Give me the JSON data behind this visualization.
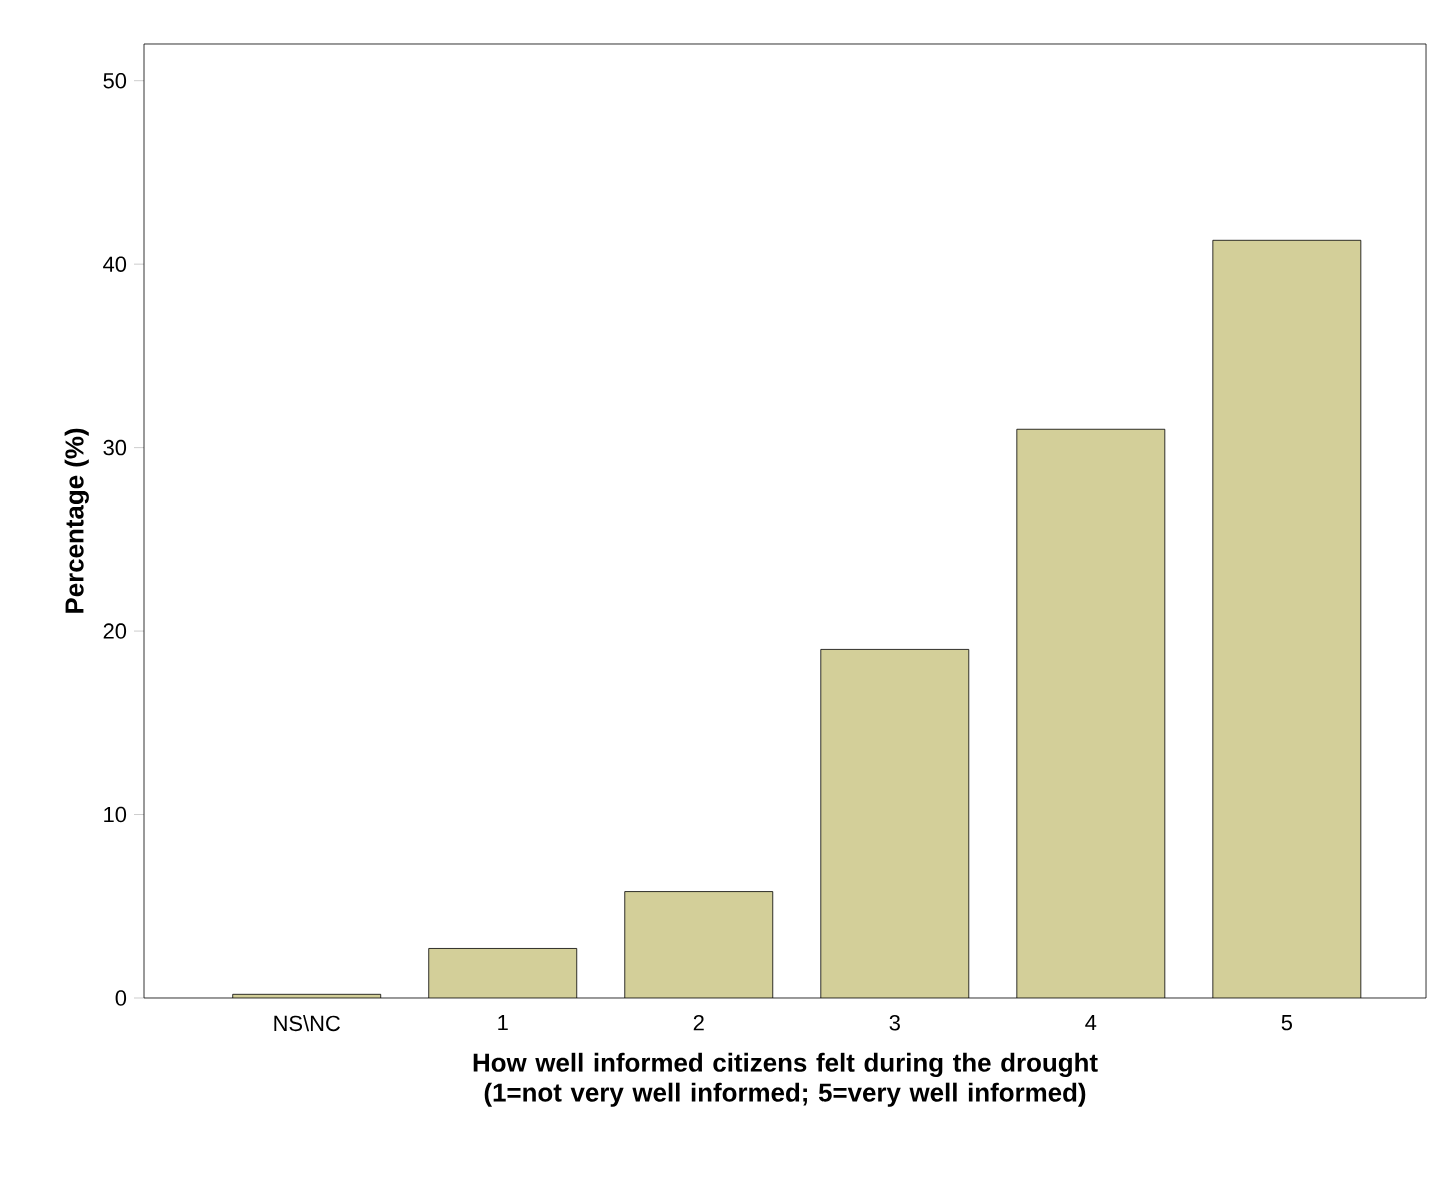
{
  "chart_data": {
    "type": "bar",
    "xlabel": "How well informed citizens felt during the drought (1=not very well informed; 5=very well informed)",
    "ylabel": "Percentage (%)",
    "categories": [
      "NS\\NC",
      "1",
      "2",
      "3",
      "4",
      "5"
    ],
    "values": [
      0.2,
      2.7,
      5.8,
      19.0,
      31.0,
      41.3
    ],
    "color": "#d3cf99",
    "ylim": [
      0,
      52
    ],
    "yticks": [
      0,
      10,
      20,
      30,
      40,
      50
    ]
  }
}
